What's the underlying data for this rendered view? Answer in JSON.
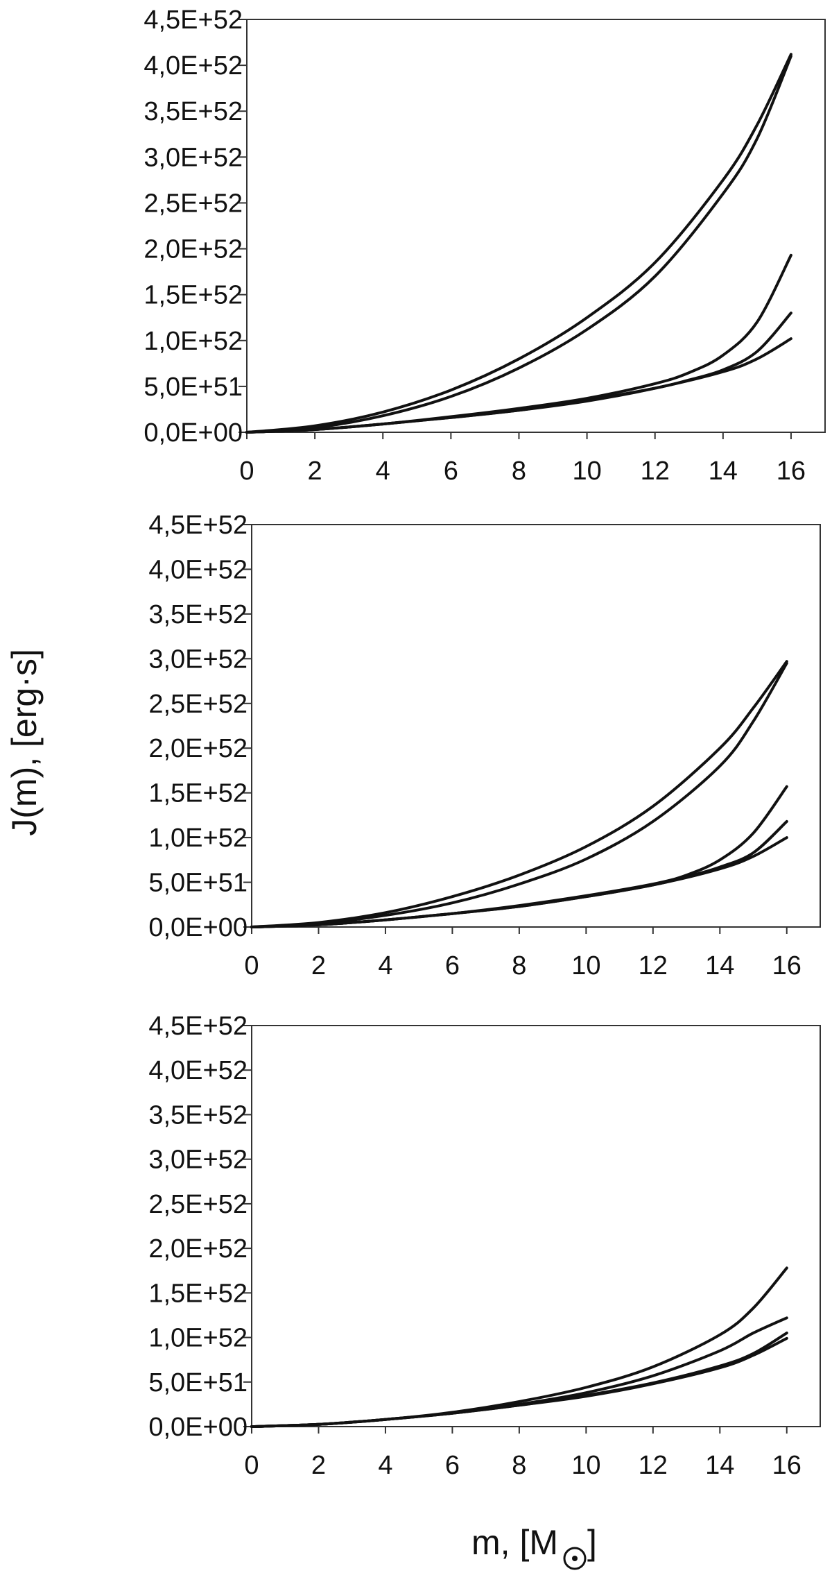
{
  "figure": {
    "ylabel": "J(m), [erg·s]",
    "xlabel": "m, [M",
    "xlabel_close": "]",
    "xlabel_symbol": "sun-symbol-icon"
  },
  "chart_data": [
    {
      "type": "line",
      "xlim": [
        0,
        17
      ],
      "ylim": [
        0,
        4.5e+52
      ],
      "x_ticks": [
        0,
        2,
        4,
        6,
        8,
        10,
        12,
        14,
        16
      ],
      "x_tick_labels": [
        "0",
        "2",
        "4",
        "6",
        "8",
        "10",
        "12",
        "14",
        "16"
      ],
      "y_ticks": [
        0,
        5e+51,
        1e+52,
        1.5e+52,
        2e+52,
        2.5e+52,
        3e+52,
        3.5e+52,
        4e+52,
        4.5e+52
      ],
      "y_tick_labels": [
        "0,0E+00",
        "5,0E+51",
        "1,0E+52",
        "1,5E+52",
        "2,0E+52",
        "2,5E+52",
        "3,0E+52",
        "3,5E+52",
        "4,0E+52",
        "4,5E+52"
      ],
      "grid": false,
      "series": [
        {
          "x": [
            0,
            2,
            4,
            6,
            8,
            10,
            12,
            14,
            15,
            16
          ],
          "values": [
            0,
            7e+50,
            2.2e+51,
            4.6e+51,
            8e+51,
            1.25e+52,
            1.85e+52,
            2.75e+52,
            3.35e+52,
            4.12e+52
          ]
        },
        {
          "x": [
            0,
            2,
            4,
            6,
            8,
            10,
            12,
            14,
            15,
            16
          ],
          "values": [
            0,
            5e+50,
            1.8e+51,
            3.9e+51,
            7e+51,
            1.12e+52,
            1.7e+52,
            2.6e+52,
            3.2e+52,
            4.1e+52
          ]
        },
        {
          "x": [
            0,
            2,
            4,
            6,
            8,
            10,
            12,
            13,
            14,
            15,
            16
          ],
          "values": [
            0,
            3e+50,
            9e+50,
            1.7e+51,
            2.6e+51,
            3.7e+51,
            5.3e+51,
            6.5e+51,
            8.4e+51,
            1.2e+52,
            1.93e+52
          ]
        },
        {
          "x": [
            0,
            2,
            4,
            6,
            8,
            10,
            12,
            13,
            14,
            15,
            16
          ],
          "values": [
            0,
            3e+50,
            9e+50,
            1.6e+51,
            2.4e+51,
            3.5e+51,
            4.8e+51,
            5.7e+51,
            6.8e+51,
            8.8e+51,
            1.3e+52
          ]
        },
        {
          "x": [
            0,
            2,
            4,
            6,
            8,
            10,
            12,
            14,
            15,
            16
          ],
          "values": [
            0,
            3e+50,
            9e+50,
            1.6e+51,
            2.4e+51,
            3.4e+51,
            4.8e+51,
            6.6e+51,
            8e+51,
            1.02e+52
          ]
        }
      ]
    },
    {
      "type": "line",
      "xlim": [
        0,
        17
      ],
      "ylim": [
        0,
        4.5e+52
      ],
      "x_ticks": [
        0,
        2,
        4,
        6,
        8,
        10,
        12,
        14,
        16
      ],
      "x_tick_labels": [
        "0",
        "2",
        "4",
        "6",
        "8",
        "10",
        "12",
        "14",
        "16"
      ],
      "y_ticks": [
        0,
        5e+51,
        1e+52,
        1.5e+52,
        2e+52,
        2.5e+52,
        3e+52,
        3.5e+52,
        4e+52,
        4.5e+52
      ],
      "y_tick_labels": [
        "0,0E+00",
        "5,0E+51",
        "1,0E+52",
        "1,5E+52",
        "2,0E+52",
        "2,5E+52",
        "3,0E+52",
        "3,5E+52",
        "4,0E+52",
        "4,5E+52"
      ],
      "grid": false,
      "series": [
        {
          "x": [
            0,
            2,
            4,
            6,
            8,
            10,
            12,
            14,
            15,
            16
          ],
          "values": [
            0,
            5e+50,
            1.6e+51,
            3.4e+51,
            5.8e+51,
            9e+51,
            1.35e+52,
            2e+52,
            2.45e+52,
            2.97e+52
          ]
        },
        {
          "x": [
            0,
            2,
            4,
            6,
            8,
            10,
            12,
            14,
            15,
            16
          ],
          "values": [
            0,
            4e+50,
            1.3e+51,
            2.7e+51,
            4.8e+51,
            7.6e+51,
            1.18e+52,
            1.8e+52,
            2.3e+52,
            2.95e+52
          ]
        },
        {
          "x": [
            0,
            2,
            4,
            6,
            8,
            10,
            12,
            13,
            14,
            15,
            16
          ],
          "values": [
            0,
            2.5e+50,
            8e+50,
            1.5e+51,
            2.4e+51,
            3.5e+51,
            4.8e+51,
            5.8e+51,
            7.5e+51,
            1.05e+52,
            1.57e+52
          ]
        },
        {
          "x": [
            0,
            2,
            4,
            6,
            8,
            10,
            12,
            13,
            14,
            15,
            16
          ],
          "values": [
            0,
            2.5e+50,
            8e+50,
            1.5e+51,
            2.3e+51,
            3.4e+51,
            4.7e+51,
            5.6e+51,
            6.7e+51,
            8.3e+51,
            1.18e+52
          ]
        },
        {
          "x": [
            0,
            2,
            4,
            6,
            8,
            10,
            12,
            14,
            15,
            16
          ],
          "values": [
            0,
            2.5e+50,
            8e+50,
            1.5e+51,
            2.3e+51,
            3.4e+51,
            4.7e+51,
            6.5e+51,
            7.9e+51,
            1e+52
          ]
        }
      ]
    },
    {
      "type": "line",
      "xlim": [
        0,
        17
      ],
      "ylim": [
        0,
        4.5e+52
      ],
      "x_ticks": [
        0,
        2,
        4,
        6,
        8,
        10,
        12,
        14,
        16
      ],
      "x_tick_labels": [
        "0",
        "2",
        "4",
        "6",
        "8",
        "10",
        "12",
        "14",
        "16"
      ],
      "y_ticks": [
        0,
        5e+51,
        1e+52,
        1.5e+52,
        2e+52,
        2.5e+52,
        3e+52,
        3.5e+52,
        4e+52,
        4.5e+52
      ],
      "y_tick_labels": [
        "0,0E+00",
        "5,0E+51",
        "1,0E+52",
        "1,5E+52",
        "2,0E+52",
        "2,5E+52",
        "3,0E+52",
        "3,5E+52",
        "4,0E+52",
        "4,5E+52"
      ],
      "grid": false,
      "series": [
        {
          "x": [
            0,
            2,
            4,
            6,
            8,
            10,
            12,
            14,
            15,
            16
          ],
          "values": [
            0,
            2.5e+50,
            8e+50,
            1.6e+51,
            2.8e+51,
            4.4e+51,
            6.7e+51,
            1.03e+52,
            1.33e+52,
            1.78e+52
          ]
        },
        {
          "x": [
            0,
            2,
            4,
            6,
            8,
            10,
            12,
            14,
            15,
            16
          ],
          "values": [
            0,
            2.5e+50,
            8e+50,
            1.5e+51,
            2.5e+51,
            3.8e+51,
            5.7e+51,
            8.5e+51,
            1.05e+52,
            1.22e+52
          ]
        },
        {
          "x": [
            0,
            2,
            4,
            6,
            8,
            10,
            12,
            14,
            15,
            16
          ],
          "values": [
            0,
            2.5e+50,
            8e+50,
            1.5e+51,
            2.4e+51,
            3.5e+51,
            4.9e+51,
            6.8e+51,
            8.2e+51,
            1.05e+52
          ]
        },
        {
          "x": [
            0,
            2,
            4,
            6,
            8,
            10,
            12,
            14,
            15,
            16
          ],
          "values": [
            0,
            2.5e+50,
            8e+50,
            1.5e+51,
            2.4e+51,
            3.4e+51,
            4.8e+51,
            6.6e+51,
            8e+51,
            9.9e+51
          ]
        }
      ]
    }
  ]
}
